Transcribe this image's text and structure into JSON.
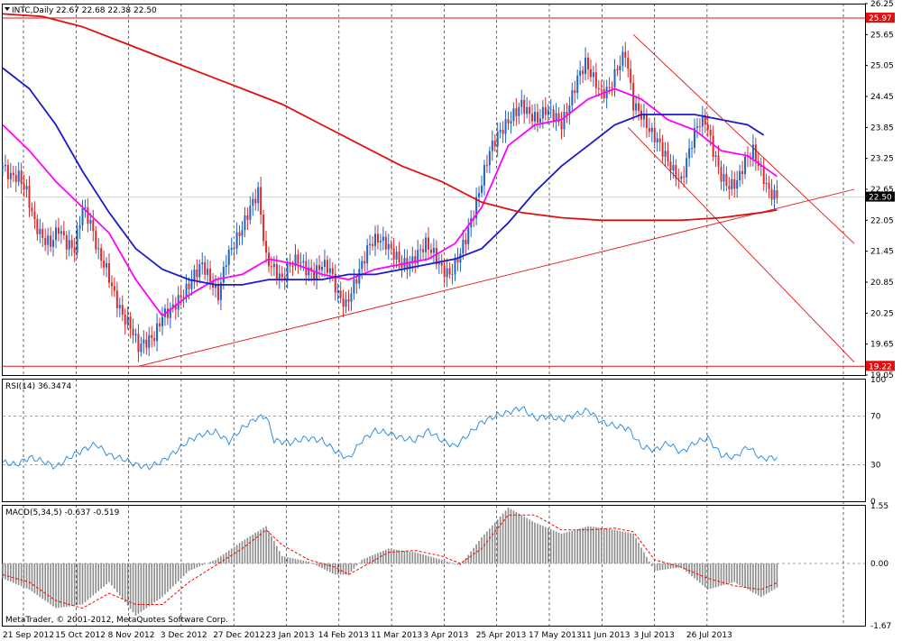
{
  "header": {
    "symbol_line": "INTC,Daily  22.67 22.68 22.38 22.50",
    "rsi_label": "RSI(14) 36.3474",
    "macd_label": "MACD(5,34,5) -0.637 -0.519",
    "copyright": "MetaTrader, © 2001-2012, MetaQuotes Software Corp."
  },
  "colors": {
    "bull": "#1e64c8",
    "bear": "#e02828",
    "ma_fast": "#ff00ff",
    "ma_mid": "#1a1ad0",
    "ma_slow": "#e01010",
    "trend": "#e01010",
    "rsi": "#3090e0",
    "macd_hist": "#8c8c8c",
    "macd_signal": "#ff0000",
    "grid": "#000000"
  },
  "chart_data": [
    {
      "type": "candlestick",
      "panel": "price",
      "symbol": "INTC",
      "timeframe": "Daily",
      "ohlc_last": {
        "open": 22.67,
        "high": 22.68,
        "low": 22.38,
        "close": 22.5
      },
      "ylim": [
        19.05,
        26.25
      ],
      "y_ticks": [
        26.25,
        25.65,
        25.05,
        24.45,
        23.85,
        23.25,
        22.65,
        22.05,
        21.45,
        20.85,
        20.25,
        19.65,
        19.05
      ],
      "x_ticks": [
        "21 Sep 2012",
        "15 Oct 2012",
        "8 Nov 2012",
        "3 Dec 2012",
        "27 Dec 2012",
        "23 Jan 2013",
        "14 Feb 2013",
        "11 Mar 2013",
        "3 Apr 2013",
        "25 Apr 2013",
        "17 May 2013",
        "11 Jun 2013",
        "3 Jul 2013",
        "26 Jul 2013"
      ],
      "price_labels": [
        {
          "value": 25.97,
          "text": "25.97",
          "color": "#e01010"
        },
        {
          "value": 22.5,
          "text": "22.50",
          "color": "#000000"
        },
        {
          "value": 19.22,
          "text": "19.22",
          "color": "#e01010"
        }
      ],
      "horizontal_lines": [
        25.97,
        19.22
      ],
      "close_path": [
        [
          0,
          23.1
        ],
        [
          3,
          22.9
        ],
        [
          6,
          22.9
        ],
        [
          9,
          22.6
        ],
        [
          12,
          22.0
        ],
        [
          15,
          21.7
        ],
        [
          18,
          21.6
        ],
        [
          21,
          21.9
        ],
        [
          24,
          21.6
        ],
        [
          27,
          21.5
        ],
        [
          30,
          22.3
        ],
        [
          33,
          22.0
        ],
        [
          36,
          21.4
        ],
        [
          39,
          21.1
        ],
        [
          42,
          20.6
        ],
        [
          45,
          20.2
        ],
        [
          48,
          20.0
        ],
        [
          51,
          19.6
        ],
        [
          54,
          19.7
        ],
        [
          57,
          19.8
        ],
        [
          60,
          20.2
        ],
        [
          63,
          20.3
        ],
        [
          66,
          20.5
        ],
        [
          69,
          20.7
        ],
        [
          72,
          21.0
        ],
        [
          75,
          21.2
        ],
        [
          78,
          20.9
        ],
        [
          81,
          20.6
        ],
        [
          84,
          21.3
        ],
        [
          87,
          21.6
        ],
        [
          90,
          21.9
        ],
        [
          93,
          22.3
        ],
        [
          96,
          22.6
        ],
        [
          99,
          21.3
        ],
        [
          102,
          21.1
        ],
        [
          105,
          20.9
        ],
        [
          108,
          21.2
        ],
        [
          111,
          21.3
        ],
        [
          114,
          21.1
        ],
        [
          117,
          21.0
        ],
        [
          120,
          21.2
        ],
        [
          123,
          21.1
        ],
        [
          126,
          20.6
        ],
        [
          129,
          20.4
        ],
        [
          132,
          20.8
        ],
        [
          135,
          21.2
        ],
        [
          138,
          21.6
        ],
        [
          141,
          21.7
        ],
        [
          144,
          21.6
        ],
        [
          147,
          21.4
        ],
        [
          150,
          21.2
        ],
        [
          153,
          21.2
        ],
        [
          156,
          21.4
        ],
        [
          159,
          21.6
        ],
        [
          162,
          21.4
        ],
        [
          165,
          21.1
        ],
        [
          168,
          21.0
        ],
        [
          171,
          21.3
        ],
        [
          174,
          21.7
        ],
        [
          177,
          22.2
        ],
        [
          180,
          22.8
        ],
        [
          183,
          23.4
        ],
        [
          186,
          23.7
        ],
        [
          189,
          23.9
        ],
        [
          192,
          24.1
        ],
        [
          195,
          24.3
        ],
        [
          198,
          24.1
        ],
        [
          201,
          24.0
        ],
        [
          204,
          24.2
        ],
        [
          207,
          24.1
        ],
        [
          210,
          23.9
        ],
        [
          213,
          24.3
        ],
        [
          216,
          24.8
        ],
        [
          219,
          25.1
        ],
        [
          222,
          24.8
        ],
        [
          225,
          24.5
        ],
        [
          228,
          24.6
        ],
        [
          231,
          25.0
        ],
        [
          234,
          25.3
        ],
        [
          237,
          24.3
        ],
        [
          240,
          24.1
        ],
        [
          243,
          23.8
        ],
        [
          246,
          23.6
        ],
        [
          249,
          23.3
        ],
        [
          252,
          23.0
        ],
        [
          255,
          22.8
        ],
        [
          258,
          23.4
        ],
        [
          261,
          23.9
        ],
        [
          264,
          24.0
        ],
        [
          267,
          23.4
        ],
        [
          270,
          22.9
        ],
        [
          273,
          22.7
        ],
        [
          276,
          22.8
        ],
        [
          279,
          23.2
        ],
        [
          282,
          23.4
        ],
        [
          285,
          23.0
        ],
        [
          288,
          22.6
        ],
        [
          291,
          22.5
        ]
      ],
      "moving_averages": [
        {
          "color": "#ff00ff",
          "points": [
            [
              0,
              23.9
            ],
            [
              10,
              23.4
            ],
            [
              20,
              22.8
            ],
            [
              30,
              22.3
            ],
            [
              40,
              21.8
            ],
            [
              50,
              20.9
            ],
            [
              60,
              20.2
            ],
            [
              70,
              20.6
            ],
            [
              80,
              20.9
            ],
            [
              90,
              21.0
            ],
            [
              100,
              21.3
            ],
            [
              110,
              21.2
            ],
            [
              120,
              21.0
            ],
            [
              130,
              20.9
            ],
            [
              140,
              21.1
            ],
            [
              150,
              21.2
            ],
            [
              160,
              21.3
            ],
            [
              170,
              21.6
            ],
            [
              180,
              22.3
            ],
            [
              190,
              23.5
            ],
            [
              200,
              23.9
            ],
            [
              210,
              24.0
            ],
            [
              220,
              24.4
            ],
            [
              230,
              24.6
            ],
            [
              240,
              24.4
            ],
            [
              250,
              24.0
            ],
            [
              260,
              23.8
            ],
            [
              270,
              23.4
            ],
            [
              280,
              23.3
            ],
            [
              291,
              22.9
            ]
          ]
        },
        {
          "color": "#1a1ad0",
          "points": [
            [
              0,
              25.0
            ],
            [
              10,
              24.6
            ],
            [
              20,
              23.9
            ],
            [
              30,
              23.0
            ],
            [
              40,
              22.2
            ],
            [
              50,
              21.5
            ],
            [
              60,
              21.1
            ],
            [
              70,
              20.9
            ],
            [
              80,
              20.8
            ],
            [
              90,
              20.8
            ],
            [
              100,
              20.9
            ],
            [
              110,
              20.9
            ],
            [
              120,
              20.9
            ],
            [
              130,
              21.0
            ],
            [
              140,
              21.0
            ],
            [
              150,
              21.1
            ],
            [
              160,
              21.2
            ],
            [
              170,
              21.3
            ],
            [
              180,
              21.5
            ],
            [
              190,
              22.0
            ],
            [
              200,
              22.6
            ],
            [
              210,
              23.1
            ],
            [
              220,
              23.5
            ],
            [
              230,
              23.9
            ],
            [
              240,
              24.1
            ],
            [
              250,
              24.1
            ],
            [
              260,
              24.1
            ],
            [
              270,
              24.0
            ],
            [
              280,
              23.9
            ],
            [
              286,
              23.7
            ]
          ]
        },
        {
          "color": "#e01010",
          "points": [
            [
              0,
              26.05
            ],
            [
              15,
              26.0
            ],
            [
              30,
              25.8
            ],
            [
              45,
              25.5
            ],
            [
              60,
              25.2
            ],
            [
              75,
              24.9
            ],
            [
              90,
              24.6
            ],
            [
              105,
              24.3
            ],
            [
              120,
              23.9
            ],
            [
              135,
              23.5
            ],
            [
              150,
              23.1
            ],
            [
              165,
              22.8
            ],
            [
              180,
              22.4
            ],
            [
              195,
              22.2
            ],
            [
              210,
              22.1
            ],
            [
              225,
              22.05
            ],
            [
              240,
              22.05
            ],
            [
              255,
              22.05
            ],
            [
              270,
              22.1
            ],
            [
              285,
              22.2
            ],
            [
              291,
              22.25
            ]
          ]
        }
      ],
      "trendlines": [
        {
          "from": [
            51,
            19.22
          ],
          "to": [
            320,
            22.65
          ]
        },
        {
          "from": [
            237,
            25.65
          ],
          "to": [
            320,
            21.6
          ]
        },
        {
          "from": [
            235,
            23.85
          ],
          "to": [
            320,
            19.3
          ]
        }
      ]
    },
    {
      "type": "line",
      "panel": "rsi",
      "name": "RSI(14)",
      "ylim": [
        0,
        100
      ],
      "y_ticks": [
        100,
        70,
        30,
        0
      ],
      "levels": [
        70,
        30
      ],
      "points": [
        [
          0,
          32
        ],
        [
          5,
          30
        ],
        [
          10,
          36
        ],
        [
          15,
          33
        ],
        [
          20,
          28
        ],
        [
          25,
          36
        ],
        [
          30,
          42
        ],
        [
          35,
          47
        ],
        [
          40,
          38
        ],
        [
          45,
          35
        ],
        [
          50,
          30
        ],
        [
          55,
          28
        ],
        [
          60,
          33
        ],
        [
          65,
          41
        ],
        [
          70,
          50
        ],
        [
          75,
          55
        ],
        [
          80,
          57
        ],
        [
          85,
          49
        ],
        [
          90,
          60
        ],
        [
          95,
          68
        ],
        [
          99,
          70
        ],
        [
          102,
          50
        ],
        [
          108,
          48
        ],
        [
          114,
          52
        ],
        [
          120,
          50
        ],
        [
          126,
          40
        ],
        [
          130,
          35
        ],
        [
          135,
          50
        ],
        [
          140,
          58
        ],
        [
          145,
          56
        ],
        [
          150,
          52
        ],
        [
          155,
          50
        ],
        [
          160,
          58
        ],
        [
          165,
          50
        ],
        [
          170,
          45
        ],
        [
          175,
          55
        ],
        [
          180,
          65
        ],
        [
          185,
          70
        ],
        [
          190,
          73
        ],
        [
          195,
          77
        ],
        [
          200,
          68
        ],
        [
          205,
          70
        ],
        [
          210,
          67
        ],
        [
          215,
          71
        ],
        [
          220,
          75
        ],
        [
          225,
          65
        ],
        [
          230,
          62
        ],
        [
          235,
          60
        ],
        [
          240,
          45
        ],
        [
          245,
          42
        ],
        [
          250,
          48
        ],
        [
          255,
          40
        ],
        [
          260,
          48
        ],
        [
          265,
          52
        ],
        [
          270,
          38
        ],
        [
          275,
          36
        ],
        [
          280,
          45
        ],
        [
          285,
          35
        ],
        [
          291,
          36
        ]
      ]
    },
    {
      "type": "bar",
      "panel": "macd",
      "name": "MACD(5,34,5)",
      "ylim": [
        -1.67,
        1.55
      ],
      "y_ticks": [
        1.55,
        0.0,
        -1.67
      ],
      "histogram_points": [
        [
          0,
          -0.4
        ],
        [
          10,
          -0.7
        ],
        [
          20,
          -1.2
        ],
        [
          30,
          -1.1
        ],
        [
          40,
          -0.5
        ],
        [
          50,
          -1.4
        ],
        [
          60,
          -0.9
        ],
        [
          70,
          -0.2
        ],
        [
          80,
          0.1
        ],
        [
          90,
          0.6
        ],
        [
          99,
          1.0
        ],
        [
          105,
          0.2
        ],
        [
          115,
          0.05
        ],
        [
          125,
          -0.3
        ],
        [
          130,
          -0.3
        ],
        [
          135,
          0.1
        ],
        [
          145,
          0.4
        ],
        [
          155,
          0.3
        ],
        [
          165,
          0.1
        ],
        [
          172,
          -0.05
        ],
        [
          180,
          0.7
        ],
        [
          190,
          1.5
        ],
        [
          200,
          1.1
        ],
        [
          210,
          0.8
        ],
        [
          220,
          1.0
        ],
        [
          230,
          0.9
        ],
        [
          237,
          0.8
        ],
        [
          245,
          -0.2
        ],
        [
          255,
          -0.1
        ],
        [
          265,
          -0.7
        ],
        [
          275,
          -0.5
        ],
        [
          285,
          -0.9
        ],
        [
          291,
          -0.65
        ]
      ],
      "signal_points": [
        [
          0,
          -0.3
        ],
        [
          10,
          -0.5
        ],
        [
          20,
          -1.0
        ],
        [
          30,
          -1.2
        ],
        [
          40,
          -0.8
        ],
        [
          50,
          -1.1
        ],
        [
          60,
          -1.1
        ],
        [
          70,
          -0.5
        ],
        [
          80,
          -0.05
        ],
        [
          90,
          0.4
        ],
        [
          99,
          0.9
        ],
        [
          105,
          0.5
        ],
        [
          115,
          0.1
        ],
        [
          125,
          -0.1
        ],
        [
          130,
          -0.3
        ],
        [
          135,
          -0.1
        ],
        [
          145,
          0.3
        ],
        [
          155,
          0.35
        ],
        [
          165,
          0.2
        ],
        [
          172,
          0.0
        ],
        [
          180,
          0.4
        ],
        [
          190,
          1.3
        ],
        [
          200,
          1.3
        ],
        [
          210,
          0.9
        ],
        [
          220,
          0.9
        ],
        [
          230,
          0.95
        ],
        [
          237,
          0.85
        ],
        [
          245,
          0.1
        ],
        [
          255,
          -0.1
        ],
        [
          265,
          -0.4
        ],
        [
          275,
          -0.6
        ],
        [
          285,
          -0.7
        ],
        [
          291,
          -0.52
        ]
      ]
    }
  ]
}
